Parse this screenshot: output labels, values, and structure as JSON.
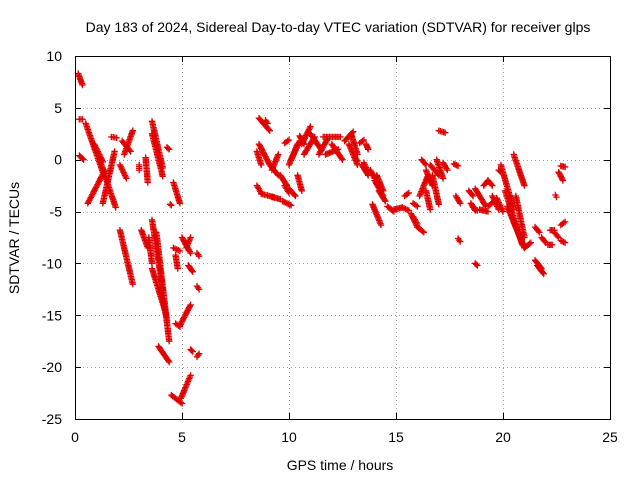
{
  "chart_data": {
    "type": "scatter",
    "title": "Day 183 of 2024, Sidereal Day-to-day VTEC variation (SDTVAR) for receiver glps",
    "xlabel": "GPS time / hours",
    "ylabel": "SDTVAR / TECUs",
    "xlim": [
      0,
      25
    ],
    "ylim": [
      -25,
      10
    ],
    "xticks": [
      0,
      5,
      10,
      15,
      20,
      25
    ],
    "yticks": [
      -25,
      -20,
      -15,
      -10,
      -5,
      0,
      5,
      10
    ],
    "grid": true,
    "marker": "plus",
    "color": "#e00000",
    "segments": [
      {
        "x0": 0.15,
        "y0": 8.3,
        "x1": 0.35,
        "y1": 7.2
      },
      {
        "x0": 0.2,
        "y0": 3.9,
        "x1": 0.35,
        "y1": 3.9
      },
      {
        "x0": 0.2,
        "y0": 0.4,
        "x1": 0.4,
        "y1": 0.0
      },
      {
        "x0": 0.5,
        "y0": 3.5,
        "x1": 1.3,
        "y1": -1.2
      },
      {
        "x0": 0.6,
        "y0": -4.2,
        "x1": 1.4,
        "y1": -1.0
      },
      {
        "x0": 0.9,
        "y0": 1.5,
        "x1": 1.3,
        "y1": -0.2
      },
      {
        "x0": 1.2,
        "y0": -0.3,
        "x1": 1.9,
        "y1": -4.6
      },
      {
        "x0": 1.3,
        "y0": -4.2,
        "x1": 1.85,
        "y1": 0.8
      },
      {
        "x0": 1.7,
        "y0": 2.2,
        "x1": 1.95,
        "y1": 2.1
      },
      {
        "x0": 2.1,
        "y0": -6.8,
        "x1": 2.7,
        "y1": -12.0
      },
      {
        "x0": 2.1,
        "y0": -0.5,
        "x1": 2.4,
        "y1": -1.8
      },
      {
        "x0": 2.3,
        "y0": 0.5,
        "x1": 2.7,
        "y1": 2.8
      },
      {
        "x0": 2.2,
        "y0": 1.8,
        "x1": 2.6,
        "y1": 0.8
      },
      {
        "x0": 3.0,
        "y0": -0.5,
        "x1": 3.0,
        "y1": -1.0
      },
      {
        "x0": 3.3,
        "y0": 0.2,
        "x1": 3.4,
        "y1": -2.2
      },
      {
        "x0": 3.1,
        "y0": -6.8,
        "x1": 3.4,
        "y1": -8.5
      },
      {
        "x0": 3.45,
        "y0": -7.5,
        "x1": 3.6,
        "y1": -10.0
      },
      {
        "x0": 3.6,
        "y0": 3.7,
        "x1": 4.1,
        "y1": -0.8
      },
      {
        "x0": 3.6,
        "y0": 2.5,
        "x1": 4.1,
        "y1": -1.6
      },
      {
        "x0": 3.6,
        "y0": -5.8,
        "x1": 4.1,
        "y1": -12.5
      },
      {
        "x0": 3.6,
        "y0": -10.5,
        "x1": 4.2,
        "y1": -14.5
      },
      {
        "x0": 3.8,
        "y0": -7.0,
        "x1": 4.4,
        "y1": -17.5
      },
      {
        "x0": 4.1,
        "y0": -13.5,
        "x1": 4.3,
        "y1": -15.5
      },
      {
        "x0": 3.9,
        "y0": -18.0,
        "x1": 4.4,
        "y1": -19.5
      },
      {
        "x0": 4.3,
        "y0": 1.2,
        "x1": 4.4,
        "y1": 1.0
      },
      {
        "x0": 4.6,
        "y0": -2.2,
        "x1": 4.9,
        "y1": -4.2
      },
      {
        "x0": 4.45,
        "y0": -4.3,
        "x1": 4.5,
        "y1": -4.4
      },
      {
        "x0": 4.6,
        "y0": -8.5,
        "x1": 4.9,
        "y1": -8.8
      },
      {
        "x0": 4.7,
        "y0": -9.2,
        "x1": 4.8,
        "y1": -10.5
      },
      {
        "x0": 4.7,
        "y0": -15.8,
        "x1": 4.9,
        "y1": -16.1
      },
      {
        "x0": 4.5,
        "y0": -22.7,
        "x1": 5.0,
        "y1": -23.5
      },
      {
        "x0": 4.95,
        "y0": -23.0,
        "x1": 5.4,
        "y1": -20.8
      },
      {
        "x0": 4.9,
        "y0": -16.0,
        "x1": 5.4,
        "y1": -14.0
      },
      {
        "x0": 5.0,
        "y0": -7.5,
        "x1": 5.4,
        "y1": -9.0
      },
      {
        "x0": 5.2,
        "y0": -8.5,
        "x1": 5.4,
        "y1": -7.5
      },
      {
        "x0": 5.3,
        "y0": -10.2,
        "x1": 5.5,
        "y1": -10.8
      },
      {
        "x0": 5.4,
        "y0": -18.3,
        "x1": 5.5,
        "y1": -18.5
      },
      {
        "x0": 5.7,
        "y0": -19.0,
        "x1": 5.8,
        "y1": -18.7
      },
      {
        "x0": 5.7,
        "y0": -12.2,
        "x1": 5.8,
        "y1": -12.5
      },
      {
        "x0": 5.7,
        "y0": -9.0,
        "x1": 5.8,
        "y1": -9.3
      },
      {
        "x0": 8.5,
        "y0": 0.8,
        "x1": 8.7,
        "y1": -0.5
      },
      {
        "x0": 8.6,
        "y0": 4.0,
        "x1": 9.1,
        "y1": 2.8
      },
      {
        "x0": 8.6,
        "y0": 1.5,
        "x1": 9.1,
        "y1": -0.5
      },
      {
        "x0": 8.9,
        "y0": 3.8,
        "x1": 9.0,
        "y1": 3.5
      },
      {
        "x0": 8.5,
        "y0": -2.5,
        "x1": 8.7,
        "y1": -3.2
      },
      {
        "x0": 8.7,
        "y0": -3.3,
        "x1": 9.3,
        "y1": -3.6
      },
      {
        "x0": 9.1,
        "y0": -0.5,
        "x1": 9.5,
        "y1": -1.5
      },
      {
        "x0": 9.2,
        "y0": -3.6,
        "x1": 9.6,
        "y1": -3.8
      },
      {
        "x0": 9.2,
        "y0": -1.0,
        "x1": 9.5,
        "y1": 0.5
      },
      {
        "x0": 9.6,
        "y0": -1.5,
        "x1": 9.9,
        "y1": -2.5
      },
      {
        "x0": 9.8,
        "y0": -2.5,
        "x1": 10.0,
        "y1": -3.2
      },
      {
        "x0": 9.7,
        "y0": -4.0,
        "x1": 10.1,
        "y1": -4.4
      },
      {
        "x0": 9.8,
        "y0": 1.6,
        "x1": 10.0,
        "y1": 1.9
      },
      {
        "x0": 10.1,
        "y0": 0.0,
        "x1": 10.5,
        "y1": 1.8
      },
      {
        "x0": 10.0,
        "y0": -0.5,
        "x1": 10.4,
        "y1": 1.5
      },
      {
        "x0": 10.0,
        "y0": -2.8,
        "x1": 10.3,
        "y1": -3.5
      },
      {
        "x0": 10.4,
        "y0": -1.5,
        "x1": 10.6,
        "y1": -3.0
      },
      {
        "x0": 10.5,
        "y0": 2.3,
        "x1": 10.7,
        "y1": 1.5
      },
      {
        "x0": 10.6,
        "y0": 1.5,
        "x1": 11.0,
        "y1": 3.2
      },
      {
        "x0": 10.7,
        "y0": 0.5,
        "x1": 11.2,
        "y1": 2.2
      },
      {
        "x0": 11.0,
        "y0": 2.5,
        "x1": 11.5,
        "y1": 1.0
      },
      {
        "x0": 11.4,
        "y0": 0.5,
        "x1": 11.8,
        "y1": 2.0
      },
      {
        "x0": 11.6,
        "y0": 2.2,
        "x1": 12.4,
        "y1": 2.2
      },
      {
        "x0": 11.7,
        "y0": 0.5,
        "x1": 12.3,
        "y1": 1.0
      },
      {
        "x0": 12.0,
        "y0": 1.5,
        "x1": 12.5,
        "y1": 0.0
      },
      {
        "x0": 12.6,
        "y0": 1.8,
        "x1": 13.0,
        "y1": 2.7
      },
      {
        "x0": 12.9,
        "y0": 2.5,
        "x1": 13.2,
        "y1": 0.5
      },
      {
        "x0": 12.8,
        "y0": 1.5,
        "x1": 13.2,
        "y1": -0.5
      },
      {
        "x0": 13.3,
        "y0": 1.6,
        "x1": 13.5,
        "y1": 1.9
      },
      {
        "x0": 13.1,
        "y0": 0.2,
        "x1": 13.2,
        "y1": -0.1
      },
      {
        "x0": 13.4,
        "y0": -0.5,
        "x1": 13.7,
        "y1": -1.5
      },
      {
        "x0": 13.5,
        "y0": -0.3,
        "x1": 13.7,
        "y1": -1.2
      },
      {
        "x0": 13.6,
        "y0": 1.5,
        "x1": 13.7,
        "y1": 1.0
      },
      {
        "x0": 13.8,
        "y0": -1.0,
        "x1": 14.0,
        "y1": -1.8
      },
      {
        "x0": 13.9,
        "y0": -4.3,
        "x1": 14.3,
        "y1": -6.3
      },
      {
        "x0": 14.1,
        "y0": -1.5,
        "x1": 14.4,
        "y1": -3.0
      },
      {
        "x0": 14.2,
        "y0": -3.0,
        "x1": 14.5,
        "y1": -4.0
      },
      {
        "x0": 14.0,
        "y0": -2.0,
        "x1": 14.4,
        "y1": -3.5
      },
      {
        "x0": 14.6,
        "y0": -4.5,
        "x1": 14.9,
        "y1": -5.0
      },
      {
        "x0": 14.9,
        "y0": -4.8,
        "x1": 15.3,
        "y1": -4.6
      },
      {
        "x0": 15.3,
        "y0": -4.6,
        "x1": 15.6,
        "y1": -4.9
      },
      {
        "x0": 15.4,
        "y0": -3.5,
        "x1": 15.6,
        "y1": -3.2
      },
      {
        "x0": 15.7,
        "y0": -5.2,
        "x1": 16.0,
        "y1": -6.5
      },
      {
        "x0": 15.8,
        "y0": -4.2,
        "x1": 16.0,
        "y1": -4.5
      },
      {
        "x0": 16.0,
        "y0": -6.5,
        "x1": 16.3,
        "y1": -7.0
      },
      {
        "x0": 15.8,
        "y0": -5.5,
        "x1": 16.0,
        "y1": -6.2
      },
      {
        "x0": 16.1,
        "y0": -3.5,
        "x1": 16.5,
        "y1": -1.5
      },
      {
        "x0": 16.2,
        "y0": 0.0,
        "x1": 16.4,
        "y1": -0.5
      },
      {
        "x0": 16.4,
        "y0": -3.0,
        "x1": 16.6,
        "y1": -4.8
      },
      {
        "x0": 16.4,
        "y0": -1.0,
        "x1": 16.7,
        "y1": -2.5
      },
      {
        "x0": 16.6,
        "y0": -0.5,
        "x1": 17.0,
        "y1": -1.5
      },
      {
        "x0": 16.7,
        "y0": -1.5,
        "x1": 17.0,
        "y1": -4.3
      },
      {
        "x0": 16.9,
        "y0": 0.0,
        "x1": 17.2,
        "y1": -1.8
      },
      {
        "x0": 17.0,
        "y0": 2.8,
        "x1": 17.3,
        "y1": 2.6
      },
      {
        "x0": 17.2,
        "y0": -0.3,
        "x1": 17.4,
        "y1": -1.0
      },
      {
        "x0": 17.7,
        "y0": -0.4,
        "x1": 17.9,
        "y1": -0.6
      },
      {
        "x0": 17.8,
        "y0": -3.5,
        "x1": 18.0,
        "y1": -4.2
      },
      {
        "x0": 17.9,
        "y0": -7.6,
        "x1": 18.0,
        "y1": -7.9
      },
      {
        "x0": 18.4,
        "y0": -3.0,
        "x1": 18.6,
        "y1": -3.5
      },
      {
        "x0": 18.5,
        "y0": -4.2,
        "x1": 18.7,
        "y1": -4.9
      },
      {
        "x0": 18.7,
        "y0": -2.8,
        "x1": 19.2,
        "y1": -4.5
      },
      {
        "x0": 18.6,
        "y0": -4.6,
        "x1": 18.8,
        "y1": -4.9
      },
      {
        "x0": 18.7,
        "y0": -10.0,
        "x1": 18.8,
        "y1": -10.2
      },
      {
        "x0": 18.9,
        "y0": -4.8,
        "x1": 19.3,
        "y1": -5.0
      },
      {
        "x0": 19.1,
        "y0": -2.5,
        "x1": 19.3,
        "y1": -2.0
      },
      {
        "x0": 19.3,
        "y0": -4.5,
        "x1": 19.7,
        "y1": -3.8
      },
      {
        "x0": 19.3,
        "y0": -2.0,
        "x1": 19.5,
        "y1": -2.5
      },
      {
        "x0": 19.5,
        "y0": -3.5,
        "x1": 19.8,
        "y1": -4.8
      },
      {
        "x0": 19.7,
        "y0": -3.7,
        "x1": 20.0,
        "y1": -5.0
      },
      {
        "x0": 19.8,
        "y0": -1.0,
        "x1": 19.9,
        "y1": -1.2
      },
      {
        "x0": 19.9,
        "y0": -0.5,
        "x1": 20.5,
        "y1": -4.8
      },
      {
        "x0": 20.2,
        "y0": -4.5,
        "x1": 21.0,
        "y1": -8.5
      },
      {
        "x0": 20.1,
        "y0": -3.0,
        "x1": 20.9,
        "y1": -8.2
      },
      {
        "x0": 20.5,
        "y0": 0.5,
        "x1": 21.0,
        "y1": -2.5
      },
      {
        "x0": 20.6,
        "y0": -3.5,
        "x1": 21.0,
        "y1": -7.5
      },
      {
        "x0": 20.5,
        "y0": -6.0,
        "x1": 21.0,
        "y1": -8.5
      },
      {
        "x0": 21.0,
        "y0": -8.5,
        "x1": 21.3,
        "y1": -8.0
      },
      {
        "x0": 21.5,
        "y0": -6.5,
        "x1": 21.7,
        "y1": -7.0
      },
      {
        "x0": 21.5,
        "y0": -9.7,
        "x1": 21.8,
        "y1": -10.5
      },
      {
        "x0": 21.6,
        "y0": -10.2,
        "x1": 21.9,
        "y1": -11.0
      },
      {
        "x0": 21.8,
        "y0": -7.5,
        "x1": 22.0,
        "y1": -8.0
      },
      {
        "x0": 22.1,
        "y0": -8.2,
        "x1": 22.3,
        "y1": -8.2
      },
      {
        "x0": 22.2,
        "y0": -6.8,
        "x1": 22.4,
        "y1": -6.8
      },
      {
        "x0": 22.4,
        "y0": -7.0,
        "x1": 22.6,
        "y1": -7.5
      },
      {
        "x0": 22.45,
        "y0": -3.4,
        "x1": 22.5,
        "y1": -3.6
      },
      {
        "x0": 22.6,
        "y0": -1.2,
        "x1": 22.8,
        "y1": -2.0
      },
      {
        "x0": 22.7,
        "y0": -6.3,
        "x1": 22.9,
        "y1": -6.0
      },
      {
        "x0": 22.7,
        "y0": -0.6,
        "x1": 22.9,
        "y1": -0.7
      },
      {
        "x0": 22.7,
        "y0": -7.8,
        "x1": 22.9,
        "y1": -8.0
      }
    ]
  }
}
